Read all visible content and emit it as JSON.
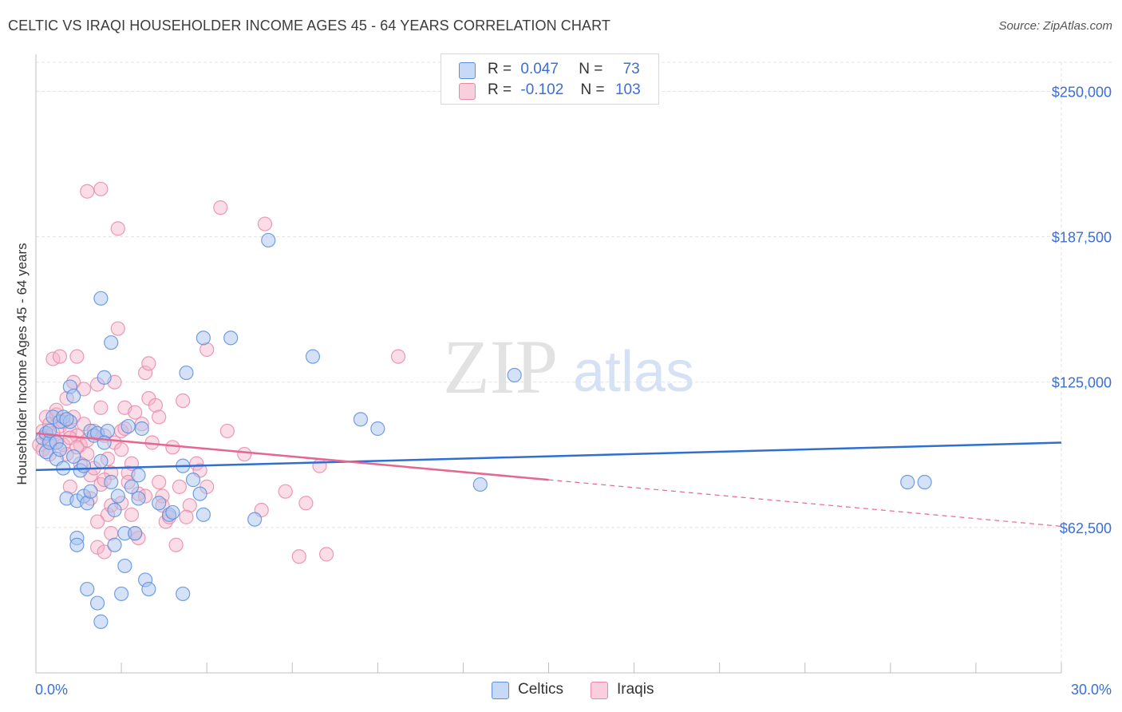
{
  "header": {
    "title": "CELTIC VS IRAQI HOUSEHOLDER INCOME AGES 45 - 64 YEARS CORRELATION CHART",
    "source": "Source: ZipAtlas.com"
  },
  "watermark": {
    "zip": "ZIP",
    "atlas": "atlas"
  },
  "stats_legend": {
    "rows": [
      {
        "r_label": "R =",
        "r_value": "0.047",
        "n_label": "N =",
        "n_value": "73",
        "color": "#a9c4f0"
      },
      {
        "r_label": "R =",
        "r_value": "-0.102",
        "n_label": "N =",
        "n_value": "103",
        "color": "#f5b3ca"
      }
    ]
  },
  "colors": {
    "celtics_fill": "#a9c4f0",
    "celtics_stroke": "#5b8fde",
    "celtics_line": "#2f6fd3",
    "iraqis_fill": "#f5b3ca",
    "iraqis_stroke": "#e889a8",
    "iraqis_line": "#e5668f",
    "grid": "#e3e3e3",
    "axis_label": "#3b6fd4"
  },
  "chart_data": {
    "type": "scatter",
    "title": "CELTIC VS IRAQI HOUSEHOLDER INCOME AGES 45 - 64 YEARS CORRELATION CHART",
    "xlabel": "",
    "ylabel": "Householder Income Ages 45 - 64 years",
    "xlim": [
      0,
      30
    ],
    "ylim": [
      0,
      262500
    ],
    "x_tick_labels": [
      "0.0%",
      "30.0%"
    ],
    "y_ticks": [
      62500,
      125000,
      187500,
      250000
    ],
    "y_tick_labels": [
      "$62,500",
      "$125,000",
      "$187,500",
      "$250,000"
    ],
    "grid": true,
    "legend_position": "bottom",
    "series": [
      {
        "name": "Celtics",
        "trend": {
          "x0": 0,
          "y0": 87200,
          "x1": 30,
          "y1": 99000,
          "style": "solid"
        },
        "points": [
          [
            0.2,
            101000
          ],
          [
            0.3,
            103000
          ],
          [
            0.3,
            95000
          ],
          [
            0.4,
            99000
          ],
          [
            0.4,
            104000
          ],
          [
            0.5,
            110000
          ],
          [
            0.6,
            99000
          ],
          [
            0.6,
            92000
          ],
          [
            0.7,
            96000
          ],
          [
            0.7,
            108000
          ],
          [
            0.8,
            110000
          ],
          [
            0.8,
            88000
          ],
          [
            0.9,
            75000
          ],
          [
            1.0,
            123000
          ],
          [
            1.0,
            108000
          ],
          [
            1.1,
            93000
          ],
          [
            1.1,
            119000
          ],
          [
            1.2,
            74000
          ],
          [
            1.2,
            58000
          ],
          [
            1.2,
            55000
          ],
          [
            1.3,
            87000
          ],
          [
            1.4,
            89000
          ],
          [
            1.4,
            76000
          ],
          [
            1.5,
            36000
          ],
          [
            1.5,
            73000
          ],
          [
            1.6,
            104000
          ],
          [
            1.6,
            78000
          ],
          [
            1.7,
            102000
          ],
          [
            1.8,
            103000
          ],
          [
            1.8,
            30000
          ],
          [
            1.9,
            91000
          ],
          [
            1.9,
            22000
          ],
          [
            1.9,
            161000
          ],
          [
            2.0,
            127000
          ],
          [
            2.1,
            104000
          ],
          [
            2.2,
            82000
          ],
          [
            2.2,
            142000
          ],
          [
            2.3,
            55000
          ],
          [
            2.3,
            70000
          ],
          [
            2.4,
            76000
          ],
          [
            2.5,
            34000
          ],
          [
            2.6,
            46000
          ],
          [
            2.6,
            60000
          ],
          [
            2.7,
            106000
          ],
          [
            2.8,
            80000
          ],
          [
            2.9,
            60000
          ],
          [
            3.0,
            85000
          ],
          [
            3.0,
            75000
          ],
          [
            3.1,
            105000
          ],
          [
            3.2,
            40000
          ],
          [
            3.3,
            36000
          ],
          [
            3.6,
            73000
          ],
          [
            3.9,
            68000
          ],
          [
            4.0,
            69000
          ],
          [
            4.3,
            34000
          ],
          [
            4.3,
            89000
          ],
          [
            4.4,
            129000
          ],
          [
            4.6,
            83000
          ],
          [
            4.8,
            77000
          ],
          [
            4.9,
            68000
          ],
          [
            4.9,
            144000
          ],
          [
            5.7,
            144000
          ],
          [
            6.4,
            66000
          ],
          [
            6.8,
            186000
          ],
          [
            8.1,
            136000
          ],
          [
            9.5,
            109000
          ],
          [
            10.0,
            105000
          ],
          [
            13.0,
            81000
          ],
          [
            14.0,
            128000
          ],
          [
            25.5,
            82000
          ],
          [
            26.0,
            82000
          ],
          [
            2.0,
            99000
          ],
          [
            0.9,
            109000
          ]
        ]
      },
      {
        "name": "Iraqis",
        "trend": {
          "x0": 0,
          "y0": 103000,
          "x1": 15,
          "y1": 83000,
          "style": "solid",
          "dash_to_x": 30,
          "dash_to_y": 63000
        },
        "points": [
          [
            0.1,
            98000
          ],
          [
            0.2,
            104000
          ],
          [
            0.2,
            96000
          ],
          [
            0.3,
            110000
          ],
          [
            0.3,
            102000
          ],
          [
            0.4,
            107000
          ],
          [
            0.4,
            100000
          ],
          [
            0.5,
            135000
          ],
          [
            0.5,
            103000
          ],
          [
            0.6,
            111000
          ],
          [
            0.6,
            99000
          ],
          [
            0.7,
            136000
          ],
          [
            0.7,
            106000
          ],
          [
            0.8,
            98000
          ],
          [
            0.8,
            108000
          ],
          [
            0.9,
            94000
          ],
          [
            1.0,
            104000
          ],
          [
            1.0,
            80000
          ],
          [
            1.1,
            125000
          ],
          [
            1.1,
            110000
          ],
          [
            1.2,
            136000
          ],
          [
            1.2,
            102000
          ],
          [
            1.3,
            98000
          ],
          [
            1.3,
            90000
          ],
          [
            1.4,
            107000
          ],
          [
            1.4,
            122000
          ],
          [
            1.5,
            100000
          ],
          [
            1.5,
            94000
          ],
          [
            1.6,
            85000
          ],
          [
            1.6,
            75000
          ],
          [
            1.7,
            88000
          ],
          [
            1.7,
            104000
          ],
          [
            1.8,
            124000
          ],
          [
            1.8,
            54000
          ],
          [
            1.9,
            114000
          ],
          [
            1.9,
            81000
          ],
          [
            2.0,
            102000
          ],
          [
            2.0,
            52000
          ],
          [
            2.1,
            68000
          ],
          [
            2.1,
            92000
          ],
          [
            2.2,
            60000
          ],
          [
            2.2,
            72000
          ],
          [
            2.3,
            125000
          ],
          [
            2.3,
            99000
          ],
          [
            2.4,
            148000
          ],
          [
            2.4,
            191000
          ],
          [
            2.5,
            104000
          ],
          [
            2.5,
            96000
          ],
          [
            2.6,
            105000
          ],
          [
            2.6,
            114000
          ],
          [
            2.7,
            86000
          ],
          [
            2.7,
            82000
          ],
          [
            2.8,
            90000
          ],
          [
            2.8,
            68000
          ],
          [
            2.9,
            112000
          ],
          [
            3.0,
            77000
          ],
          [
            3.0,
            58000
          ],
          [
            3.1,
            107000
          ],
          [
            3.2,
            129000
          ],
          [
            3.3,
            133000
          ],
          [
            3.3,
            118000
          ],
          [
            3.4,
            99000
          ],
          [
            3.5,
            115000
          ],
          [
            3.6,
            110000
          ],
          [
            3.6,
            82000
          ],
          [
            3.7,
            76000
          ],
          [
            3.8,
            65000
          ],
          [
            3.9,
            67000
          ],
          [
            4.0,
            97000
          ],
          [
            4.1,
            55000
          ],
          [
            4.2,
            80000
          ],
          [
            4.3,
            117000
          ],
          [
            4.5,
            72000
          ],
          [
            4.7,
            90000
          ],
          [
            4.8,
            87000
          ],
          [
            5.0,
            80000
          ],
          [
            5.0,
            139000
          ],
          [
            5.4,
            200000
          ],
          [
            5.6,
            104000
          ],
          [
            6.1,
            94000
          ],
          [
            6.6,
            70000
          ],
          [
            6.7,
            193000
          ],
          [
            7.3,
            78000
          ],
          [
            7.7,
            50000
          ],
          [
            7.9,
            73000
          ],
          [
            8.3,
            89000
          ],
          [
            8.5,
            51000
          ],
          [
            10.6,
            136000
          ],
          [
            1.9,
            208000
          ],
          [
            1.5,
            207000
          ],
          [
            2.5,
            73000
          ],
          [
            3.2,
            76000
          ],
          [
            2.9,
            60000
          ],
          [
            1.0,
            101000
          ],
          [
            0.6,
            113000
          ],
          [
            1.8,
            65000
          ],
          [
            2.2,
            86000
          ],
          [
            3.7,
            72000
          ],
          [
            0.4,
            94000
          ],
          [
            1.2,
            97000
          ],
          [
            2.0,
            83000
          ],
          [
            4.4,
            67000
          ],
          [
            0.9,
            118000
          ]
        ]
      }
    ]
  }
}
